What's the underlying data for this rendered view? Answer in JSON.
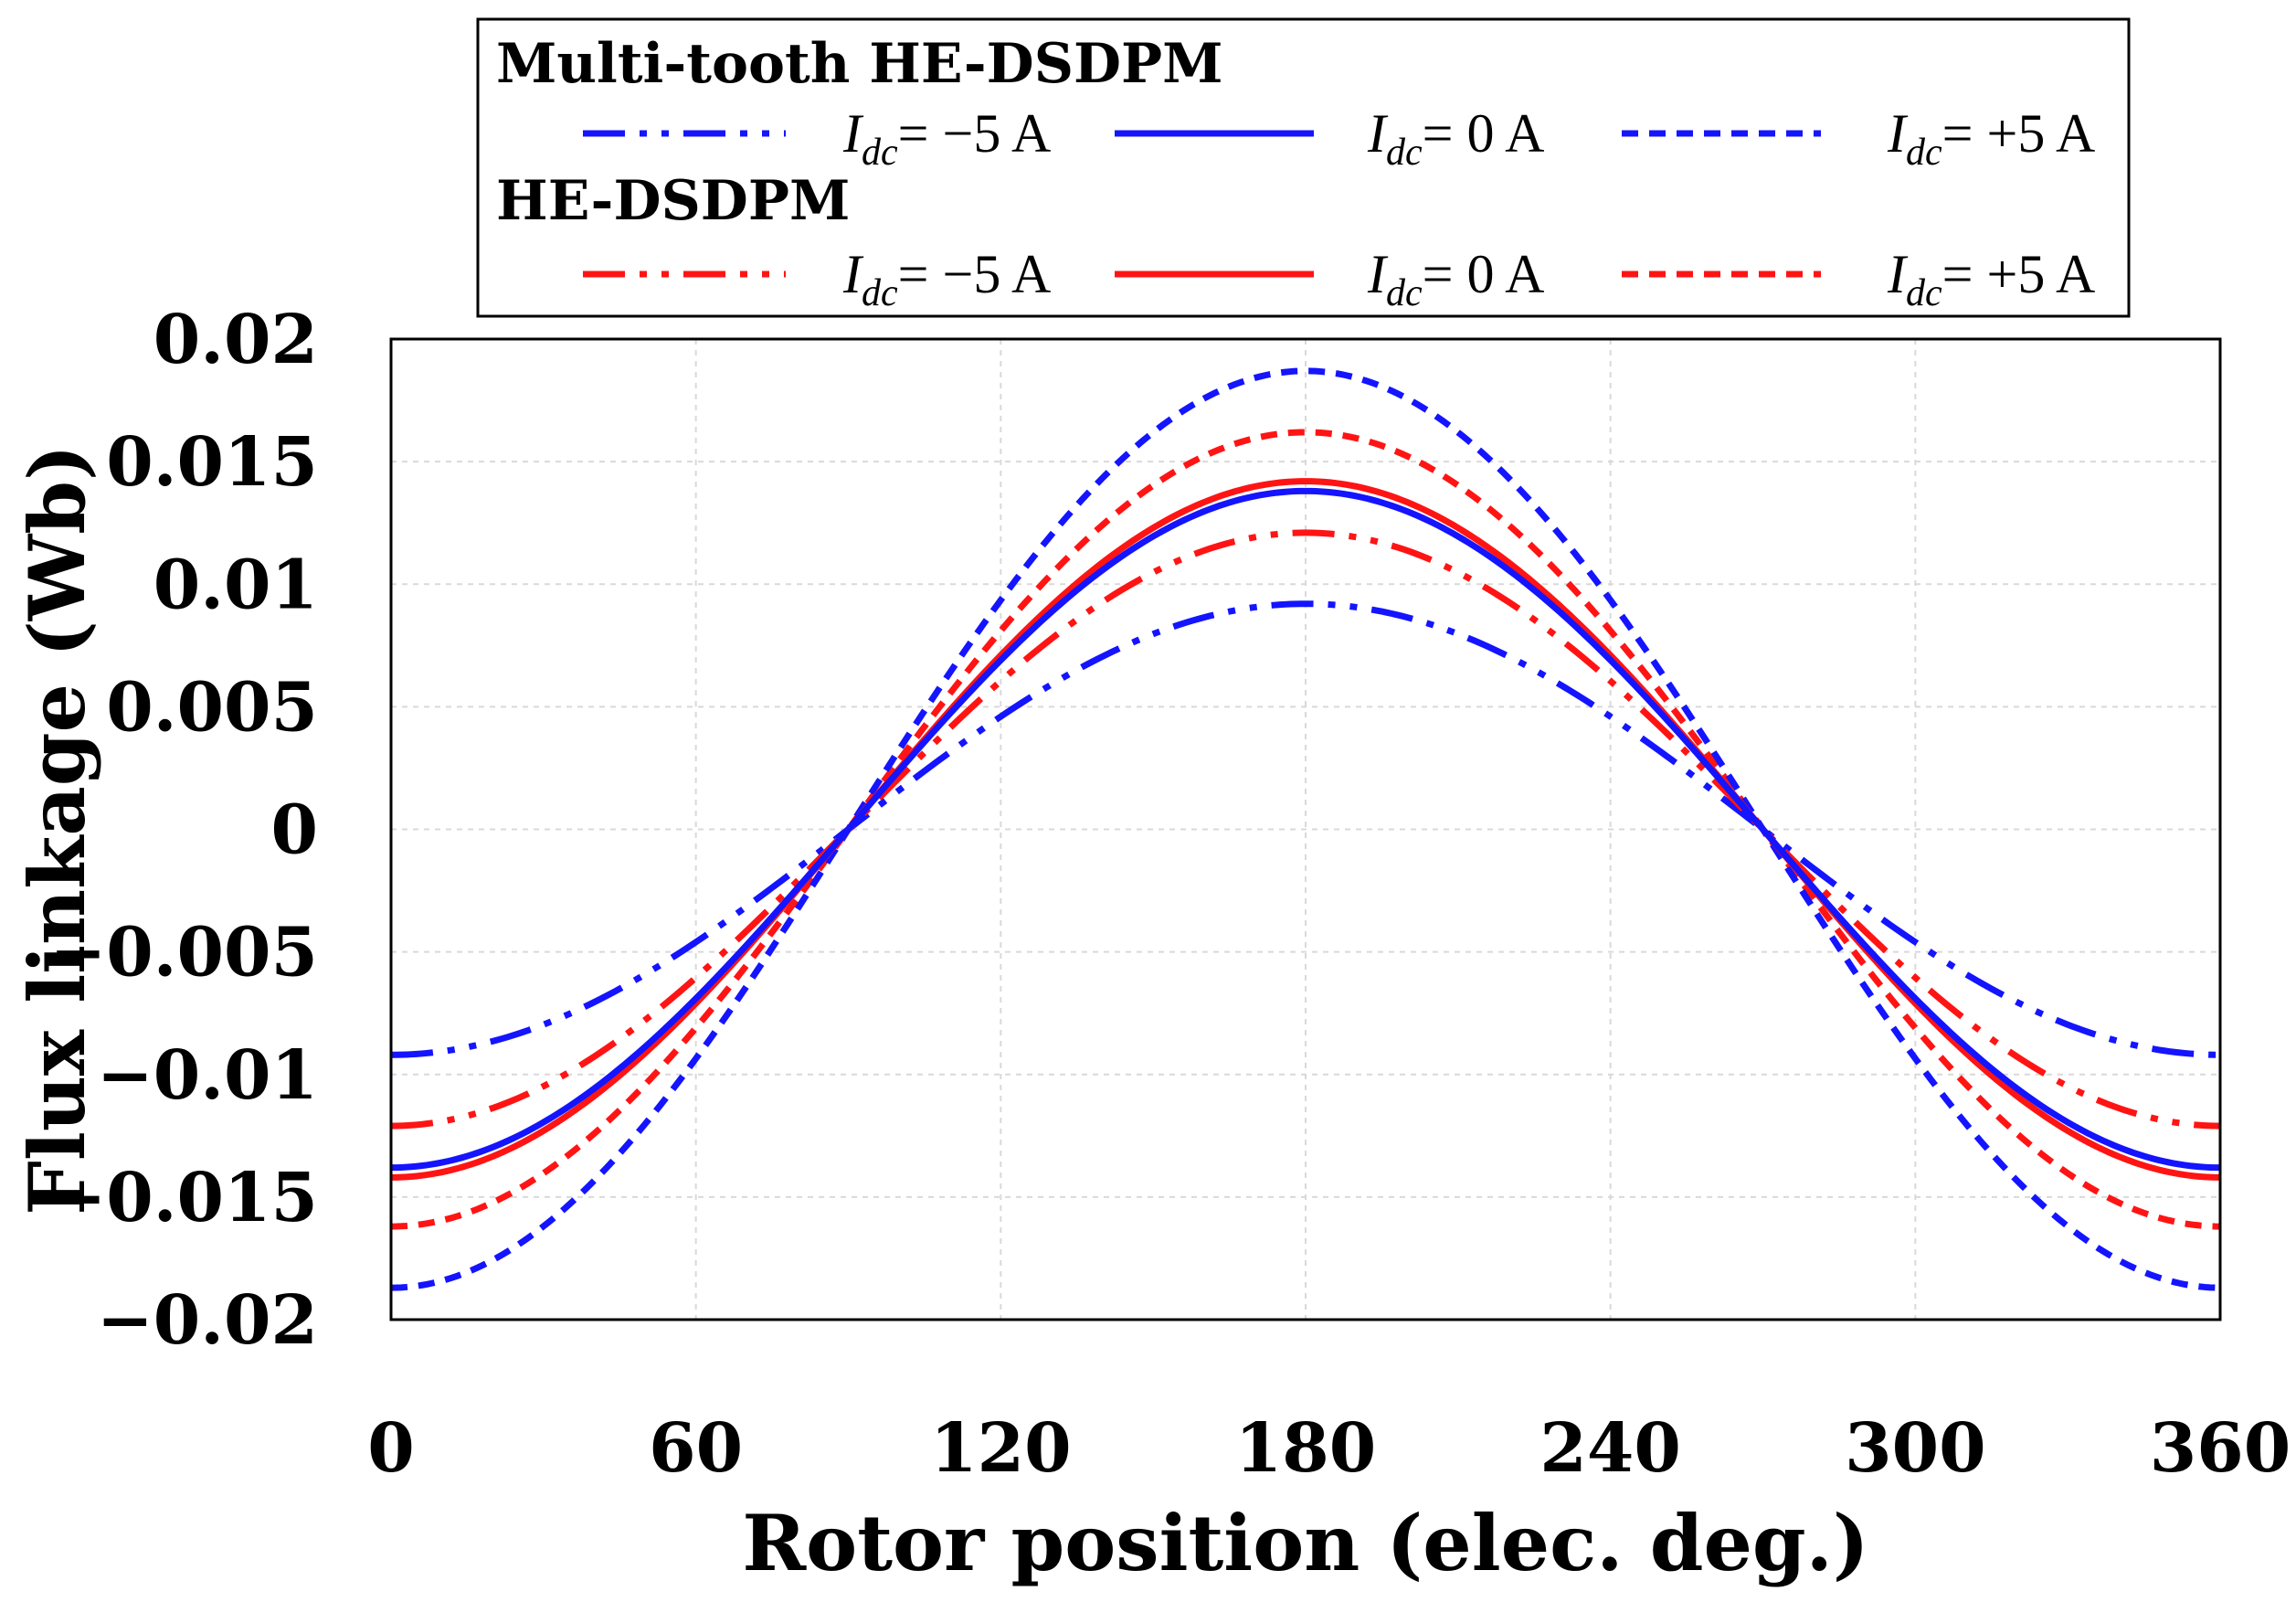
{
  "chart_data": {
    "type": "line",
    "xlabel": "Rotor position (elec. deg.)",
    "ylabel": "Flux linkage (Wb)",
    "xlim": [
      0,
      360
    ],
    "ylim": [
      -0.02,
      0.02
    ],
    "xticks": [
      0,
      60,
      120,
      180,
      240,
      300,
      360
    ],
    "yticks": [
      0.02,
      0.015,
      0.01,
      0.005,
      0,
      -0.005,
      -0.01,
      -0.015,
      -0.02
    ],
    "ytick_labels": [
      "0.02",
      "0.015",
      "0.01",
      "0.005",
      "0",
      "−0.005",
      "−0.01",
      "−0.015",
      "−0.02"
    ],
    "grid": true,
    "legend": {
      "placement": "top-center",
      "groups": [
        {
          "title": "Multi-tooth HE-DSDPM"
        },
        {
          "title": "HE-DSDPM"
        }
      ]
    },
    "x": [
      0,
      30,
      60,
      90,
      120,
      150,
      180,
      210,
      240,
      270,
      300,
      330,
      360
    ],
    "series": [
      {
        "name": "Multi-tooth HE-DSDPM, Idc = −5 A",
        "group": 0,
        "label_main": "I",
        "label_sub": "dc",
        "label_rest": "= −5 A",
        "color": "#1414ff",
        "style": "dashdotdot",
        "amplitude": 0.0092
      },
      {
        "name": "Multi-tooth HE-DSDPM, Idc = 0 A",
        "group": 0,
        "label_main": "I",
        "label_sub": "dc",
        "label_rest": "= 0 A",
        "color": "#1414ff",
        "style": "solid",
        "amplitude": 0.0138
      },
      {
        "name": "Multi-tooth HE-DSDPM, Idc = +5 A",
        "group": 0,
        "label_main": "I",
        "label_sub": "dc",
        "label_rest": "= +5 A",
        "color": "#1414ff",
        "style": "dashed",
        "amplitude": 0.0187
      },
      {
        "name": "HE-DSDPM, Idc = −5 A",
        "group": 1,
        "label_main": "I",
        "label_sub": "dc",
        "label_rest": "= −5 A",
        "color": "#ff1414",
        "style": "dashdotdot",
        "amplitude": 0.0121
      },
      {
        "name": "HE-DSDPM, Idc = 0 A",
        "group": 1,
        "label_main": "I",
        "label_sub": "dc",
        "label_rest": "= 0 A",
        "color": "#ff1414",
        "style": "solid",
        "amplitude": 0.0142
      },
      {
        "name": "HE-DSDPM, Idc = +5 A",
        "group": 1,
        "label_main": "I",
        "label_sub": "dc",
        "label_rest": "= +5 A",
        "color": "#ff1414",
        "style": "dashed",
        "amplitude": 0.0162
      }
    ]
  }
}
